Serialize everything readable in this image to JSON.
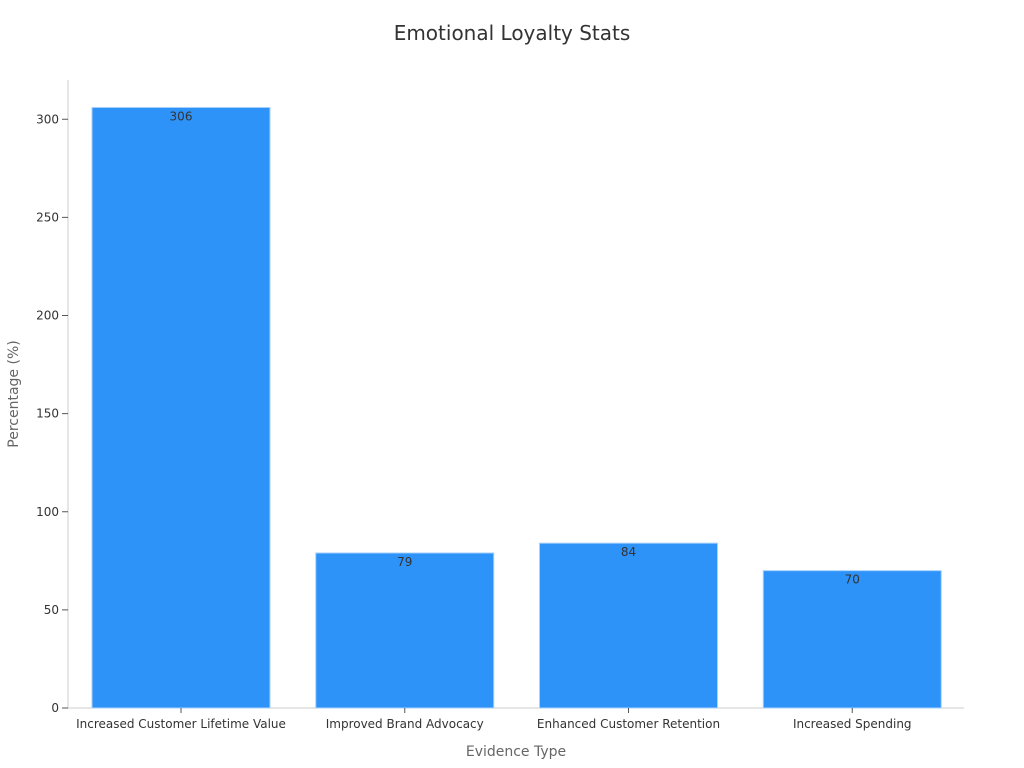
{
  "chart_data": {
    "type": "bar",
    "title": "Emotional Loyalty Stats",
    "xlabel": "Evidence Type",
    "ylabel": "Percentage (%)",
    "categories": [
      "Increased Customer Lifetime Value",
      "Improved Brand Advocacy",
      "Enhanced Customer Retention",
      "Increased Spending"
    ],
    "values": [
      306,
      79,
      84,
      70
    ],
    "ylim": [
      0,
      320
    ],
    "yticks": [
      0,
      50,
      100,
      150,
      200,
      250,
      300
    ],
    "grid": false,
    "bar_color": "#2e93f9",
    "bar_edge_color": "#a9d2fb"
  }
}
